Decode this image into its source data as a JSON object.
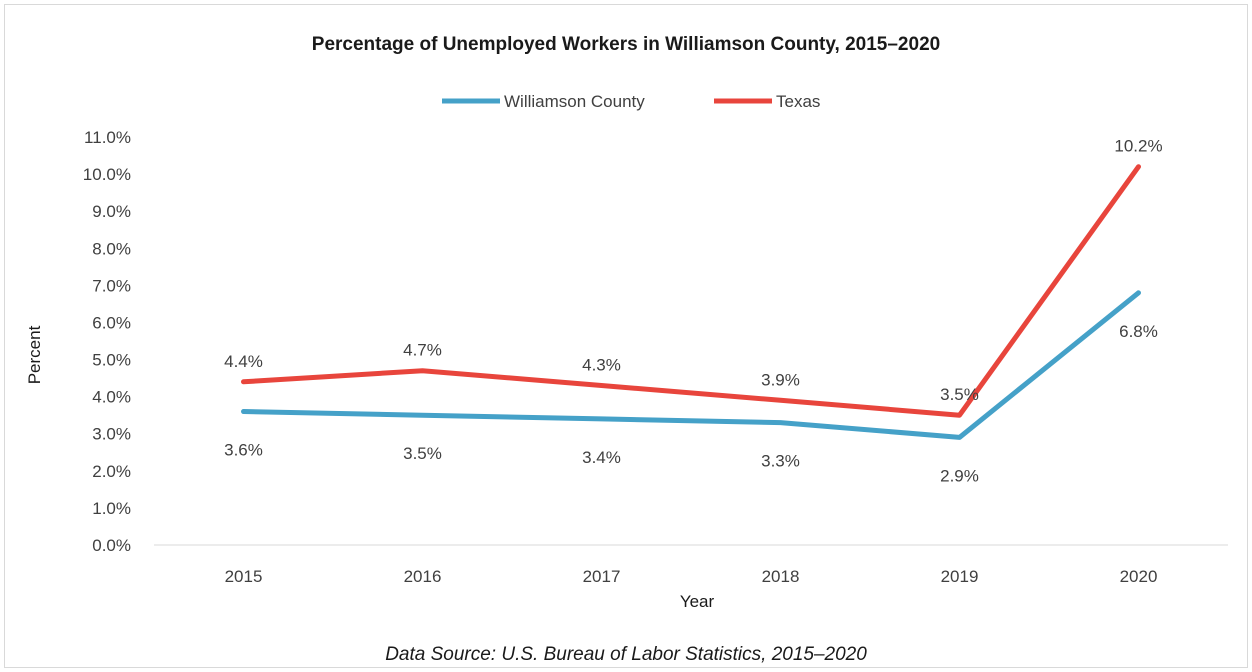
{
  "chart_data": {
    "type": "line",
    "title": "Percentage of Unemployed Workers in Williamson County, 2015–2020",
    "categories": [
      "2015",
      "2016",
      "2017",
      "2018",
      "2019",
      "2020"
    ],
    "series": [
      {
        "name": "Williamson County",
        "color": "#45a1c8",
        "values": [
          3.6,
          3.5,
          3.4,
          3.3,
          2.9,
          6.8
        ],
        "labels": [
          "3.6%",
          "3.5%",
          "3.4%",
          "3.3%",
          "2.9%",
          "6.8%"
        ],
        "label_position": "below"
      },
      {
        "name": "Texas",
        "color": "#e8453c",
        "values": [
          4.4,
          4.7,
          4.3,
          3.9,
          3.5,
          10.2
        ],
        "labels": [
          "4.4%",
          "4.7%",
          "4.3%",
          "3.9%",
          "3.5%",
          "10.2%"
        ],
        "label_position": "above"
      }
    ],
    "xlabel": "Year",
    "ylabel": "Percent",
    "ylim": [
      0,
      11
    ],
    "yticks": [
      "0.0%",
      "1.0%",
      "2.0%",
      "3.0%",
      "4.0%",
      "5.0%",
      "6.0%",
      "7.0%",
      "8.0%",
      "9.0%",
      "10.0%",
      "11.0%"
    ],
    "grid": false,
    "legend_position": "top",
    "source": "Data Source: U.S. Bureau of Labor Statistics, 2015–2020"
  }
}
